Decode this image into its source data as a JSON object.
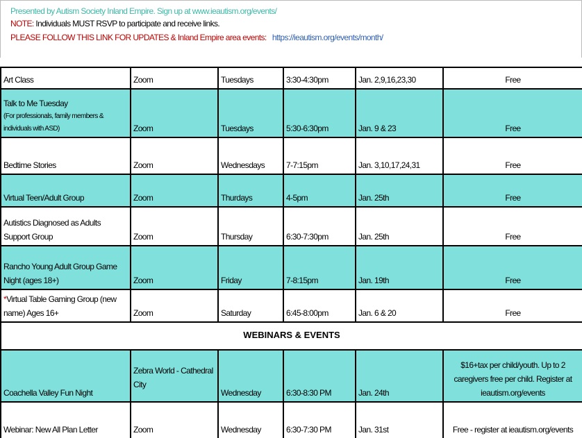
{
  "header": {
    "line1": "Presented by Autism Society Inland Empire. Sign up at www.ieautism.org/events/",
    "note_label": "NOTE:",
    "note_text": "Individuals MUST RSVP to participate and receive links.",
    "follow_text": "PLEASE FOLLOW THIS LINK FOR UPDATES & Inland Empire area events:",
    "follow_link": "https://ieautism.org/events/month/",
    "colors": {
      "teal": "#3fb8a8",
      "red": "#c00000",
      "blue": "#2f5fb0",
      "row_teal": "#7fe0dc"
    }
  },
  "rows": [
    {
      "name": "Art Class",
      "sub": "",
      "location": "Zoom",
      "day": "Tuesdays",
      "time": "3:30-4:30pm",
      "dates": "Jan. 2,9,16,23,30",
      "cost": "Free",
      "teal": false
    },
    {
      "name": "Talk to Me Tuesday",
      "sub": "(For professionals, family members & individuals with ASD)",
      "location": "Zoom",
      "day": "Tuesdays",
      "time": "5:30-6:30pm",
      "dates": "Jan. 9 & 23",
      "cost": "Free",
      "teal": true
    },
    {
      "name": "Bedtime Stories",
      "sub": "",
      "location": "Zoom",
      "day": "Wednesdays",
      "time": "7-7:15pm",
      "dates": "Jan. 3,10,17,24,31",
      "cost": "Free",
      "teal": false
    },
    {
      "name": "Virtual Teen/Adult Group",
      "sub": "",
      "location": "Zoom",
      "day": "Thurdays",
      "time": "4-5pm",
      "dates": "Jan. 25th",
      "cost": "Free",
      "teal": true
    },
    {
      "name": "Autistics Diagnosed as Adults Support Group",
      "sub": "",
      "location": "Zoom",
      "day": "Thursday",
      "time": "6:30-7:30pm",
      "dates": "Jan. 25th",
      "cost": "Free",
      "teal": false
    },
    {
      "name": "Rancho Young Adult Group Game Night (ages 18+)",
      "sub": "",
      "location": "Zoom",
      "day": "Friday",
      "time": "7-8:15pm",
      "dates": "Jan. 19th",
      "cost": "Free",
      "teal": true
    },
    {
      "name": "Virtual Table Gaming Group   (new name)        Ages 16+",
      "star": "*",
      "sub": "",
      "location": "Zoom",
      "day": "Saturday",
      "time": "6:45-8:00pm",
      "dates": "Jan. 6 & 20",
      "cost": "Free",
      "teal": false
    }
  ],
  "section_title": "WEBINARS & EVENTS",
  "events": [
    {
      "name": "Coachella Valley Fun Night",
      "location": "Zebra World - Cathedral City",
      "day": "Wednesday",
      "time": "6:30-8:30 PM",
      "dates": "Jan. 24th",
      "cost": "$16+tax per child/youth. Up to 2 caregivers free per child. Register at ieautism.org/events",
      "teal": true
    },
    {
      "name": "Webinar: New All Plan Letter",
      "location": "Zoom",
      "day": "Wednesday",
      "time": "6:30-7:30 PM",
      "dates": "Jan. 31st",
      "cost": "Free - register at ieautism.org/events",
      "teal": false
    }
  ]
}
